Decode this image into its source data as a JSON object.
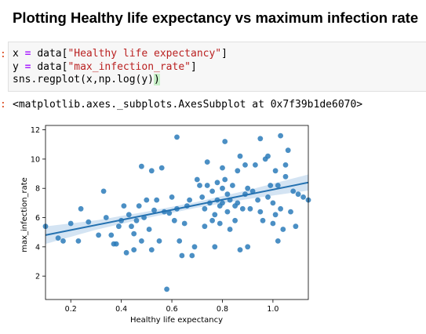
{
  "heading": "Plotting Healthy life expectancy vs maximum infection rate",
  "input_prompt": ":",
  "output_prompt": ":",
  "code": {
    "line1": {
      "var": "x",
      "op": "=",
      "obj": "data[",
      "str": "\"Healthy life expectancy\"",
      "end": "]"
    },
    "line2": {
      "var": "y",
      "op": "=",
      "obj": "data[",
      "str": "\"max_infection_rate\"",
      "end": "]"
    },
    "line3": {
      "prefix": "sns.regplot(x,np.log(y)",
      "paren": ")"
    }
  },
  "output_text": "<matplotlib.axes._subplots.AxesSubplot at 0x7f39b1de6070>",
  "chart_data": {
    "type": "scatter",
    "xlabel": "Healthy life expectancy",
    "ylabel": "max_infection_rate",
    "xlim": [
      0.1,
      1.14
    ],
    "ylim": [
      0.4,
      12.3
    ],
    "xticks": [
      0.2,
      0.4,
      0.6,
      0.8,
      1.0
    ],
    "xtick_labels": [
      "0.2",
      "0.4",
      "0.6",
      "0.8",
      "1.0"
    ],
    "yticks": [
      2,
      4,
      6,
      8,
      10,
      12
    ],
    "ytick_labels": [
      "2",
      "4",
      "6",
      "8",
      "10",
      "12"
    ],
    "grid": false,
    "point_color": "#2b7bba",
    "line_color": "#2471b0",
    "band_color": "#c6dbef",
    "regression": {
      "x": [
        0.1,
        1.14
      ],
      "y": [
        4.8,
        8.4
      ]
    },
    "band_halfwidth": {
      "x": [
        0.1,
        0.3,
        0.5,
        0.7,
        0.9,
        1.14
      ],
      "w": [
        0.6,
        0.32,
        0.22,
        0.2,
        0.3,
        0.55
      ]
    },
    "points": [
      [
        0.1,
        5.4
      ],
      [
        0.15,
        4.6
      ],
      [
        0.17,
        4.4
      ],
      [
        0.2,
        5.6
      ],
      [
        0.23,
        4.4
      ],
      [
        0.24,
        6.6
      ],
      [
        0.27,
        5.7
      ],
      [
        0.31,
        4.8
      ],
      [
        0.33,
        7.8
      ],
      [
        0.34,
        6.0
      ],
      [
        0.36,
        4.8
      ],
      [
        0.37,
        4.2
      ],
      [
        0.38,
        4.2
      ],
      [
        0.39,
        5.4
      ],
      [
        0.4,
        5.8
      ],
      [
        0.41,
        6.8
      ],
      [
        0.42,
        3.6
      ],
      [
        0.43,
        6.2
      ],
      [
        0.44,
        5.4
      ],
      [
        0.45,
        4.9
      ],
      [
        0.45,
        3.8
      ],
      [
        0.46,
        5.8
      ],
      [
        0.47,
        6.8
      ],
      [
        0.48,
        4.4
      ],
      [
        0.48,
        9.5
      ],
      [
        0.49,
        6.0
      ],
      [
        0.5,
        7.2
      ],
      [
        0.51,
        5.2
      ],
      [
        0.52,
        3.8
      ],
      [
        0.52,
        9.2
      ],
      [
        0.53,
        6.5
      ],
      [
        0.54,
        7.2
      ],
      [
        0.55,
        4.4
      ],
      [
        0.56,
        9.4
      ],
      [
        0.57,
        6.4
      ],
      [
        0.58,
        1.1
      ],
      [
        0.59,
        6.3
      ],
      [
        0.6,
        7.4
      ],
      [
        0.61,
        5.8
      ],
      [
        0.62,
        11.5
      ],
      [
        0.62,
        6.6
      ],
      [
        0.63,
        4.4
      ],
      [
        0.64,
        3.4
      ],
      [
        0.65,
        5.6
      ],
      [
        0.66,
        6.8
      ],
      [
        0.67,
        7.2
      ],
      [
        0.68,
        3.4
      ],
      [
        0.69,
        4.0
      ],
      [
        0.7,
        8.6
      ],
      [
        0.71,
        8.2
      ],
      [
        0.72,
        7.4
      ],
      [
        0.73,
        6.6
      ],
      [
        0.73,
        5.4
      ],
      [
        0.74,
        9.8
      ],
      [
        0.74,
        8.2
      ],
      [
        0.75,
        7.0
      ],
      [
        0.76,
        7.8
      ],
      [
        0.76,
        5.8
      ],
      [
        0.77,
        6.2
      ],
      [
        0.77,
        4.0
      ],
      [
        0.78,
        8.4
      ],
      [
        0.78,
        7.2
      ],
      [
        0.79,
        6.8
      ],
      [
        0.79,
        5.6
      ],
      [
        0.8,
        9.4
      ],
      [
        0.8,
        8.0
      ],
      [
        0.8,
        7.0
      ],
      [
        0.81,
        11.2
      ],
      [
        0.81,
        8.6
      ],
      [
        0.82,
        7.6
      ],
      [
        0.82,
        6.4
      ],
      [
        0.83,
        5.2
      ],
      [
        0.83,
        7.2
      ],
      [
        0.84,
        8.2
      ],
      [
        0.85,
        6.8
      ],
      [
        0.85,
        5.8
      ],
      [
        0.86,
        9.2
      ],
      [
        0.86,
        7.0
      ],
      [
        0.87,
        10.2
      ],
      [
        0.87,
        3.8
      ],
      [
        0.88,
        6.6
      ],
      [
        0.89,
        9.6
      ],
      [
        0.89,
        7.6
      ],
      [
        0.9,
        4.0
      ],
      [
        0.9,
        8.0
      ],
      [
        0.91,
        6.6
      ],
      [
        0.92,
        7.8
      ],
      [
        0.93,
        9.6
      ],
      [
        0.94,
        7.2
      ],
      [
        0.95,
        6.4
      ],
      [
        0.96,
        5.8
      ],
      [
        0.97,
        10.0
      ],
      [
        0.98,
        7.4
      ],
      [
        0.99,
        8.2
      ],
      [
        1.0,
        7.0
      ],
      [
        1.0,
        5.6
      ],
      [
        1.01,
        6.2
      ],
      [
        1.01,
        9.2
      ],
      [
        1.02,
        4.4
      ],
      [
        1.02,
        8.2
      ],
      [
        1.03,
        6.6
      ],
      [
        1.04,
        5.2
      ],
      [
        1.05,
        9.6
      ],
      [
        1.05,
        8.8
      ],
      [
        1.06,
        10.6
      ],
      [
        1.07,
        6.4
      ],
      [
        1.08,
        7.8
      ],
      [
        1.09,
        5.4
      ],
      [
        1.1,
        7.6
      ],
      [
        1.12,
        7.4
      ],
      [
        1.14,
        7.2
      ],
      [
        0.98,
        10.2
      ],
      [
        0.95,
        11.4
      ],
      [
        1.03,
        11.6
      ]
    ]
  }
}
